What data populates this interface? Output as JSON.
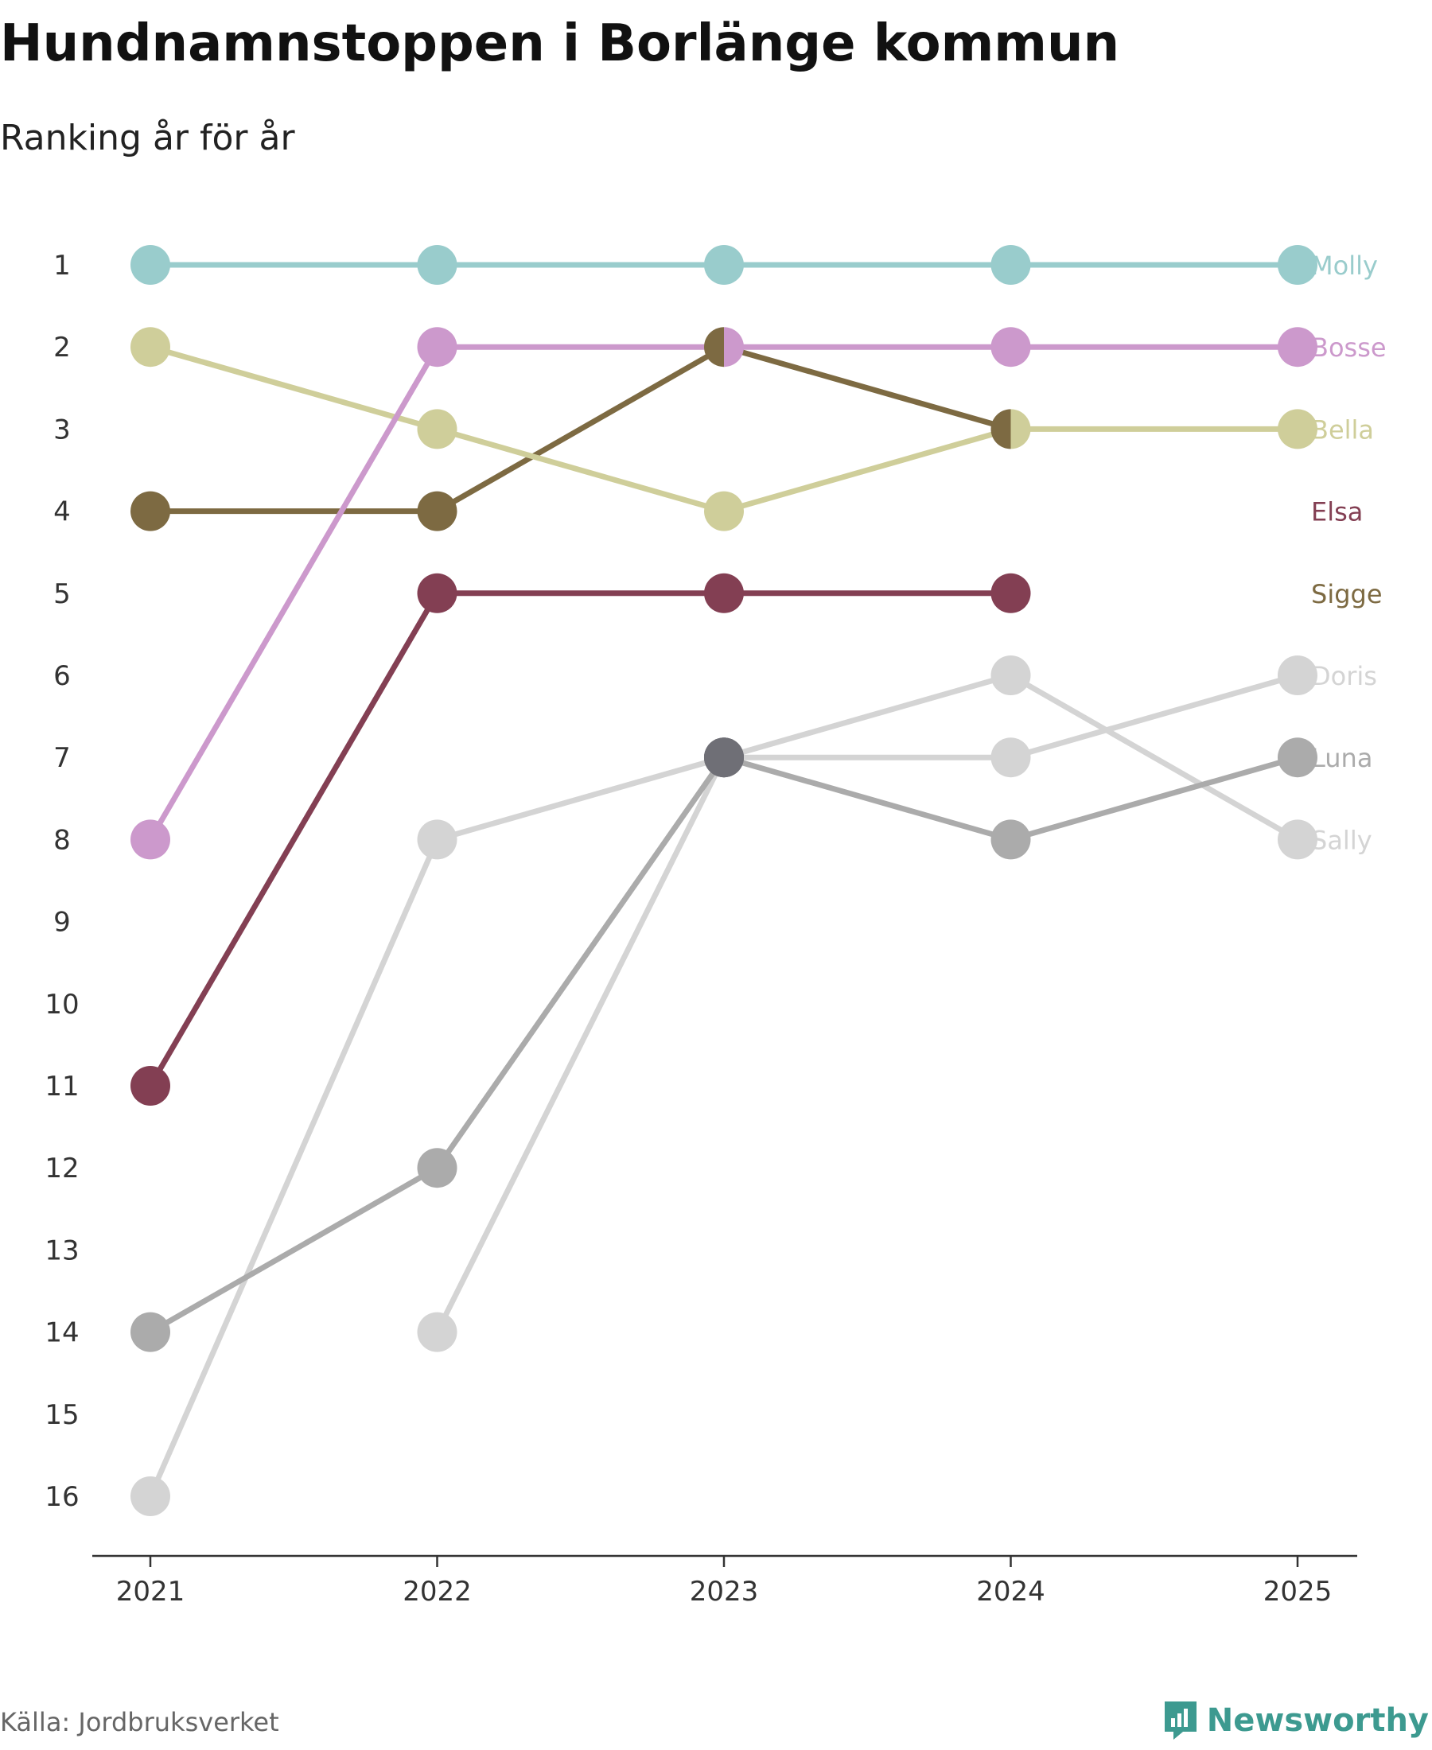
{
  "header": {
    "title": "Hundnamnstoppen i Borlänge kommun",
    "subtitle": "Ranking år för år"
  },
  "footer": {
    "source": "Källa: Jordbruksverket",
    "brand": "Newsworthy"
  },
  "chart_data": {
    "type": "line",
    "title": "Hundnamnstoppen i Borlänge kommun",
    "subtitle": "Ranking år för år",
    "xlabel": "",
    "ylabel": "",
    "categories": [
      "2021",
      "2022",
      "2023",
      "2024",
      "2025"
    ],
    "y_ticks": [
      "1",
      "2",
      "3",
      "4",
      "5",
      "6",
      "7",
      "8",
      "9",
      "10",
      "11",
      "12",
      "13",
      "14",
      "15",
      "16"
    ],
    "ylim": [
      1,
      16
    ],
    "y_inverted": true,
    "grid": false,
    "series": [
      {
        "name": "Sally",
        "color": "#d4d4d4",
        "values": [
          null,
          14,
          7,
          6,
          8
        ]
      },
      {
        "name": "Doris",
        "color": "#d4d4d4",
        "values": [
          16,
          8,
          7,
          7,
          6
        ]
      },
      {
        "name": "Luna",
        "color": "#ababab",
        "values": [
          14,
          12,
          7,
          8,
          7
        ]
      },
      {
        "name": "Sigge",
        "color": "#7d6a42",
        "values": [
          4,
          4,
          2,
          3,
          null
        ]
      },
      {
        "name": "Elsa",
        "color": "#833f53",
        "values": [
          11,
          5,
          5,
          5,
          null
        ]
      },
      {
        "name": "Bella",
        "color": "#cfce9a",
        "values": [
          2,
          3,
          4,
          3,
          3
        ]
      },
      {
        "name": "Bosse",
        "color": "#cc99cc",
        "values": [
          8,
          2,
          2,
          2,
          2
        ]
      },
      {
        "name": "Molly",
        "color": "#99cccc",
        "values": [
          1,
          1,
          1,
          1,
          1
        ]
      }
    ],
    "end_labels": [
      {
        "name": "Molly",
        "rank": 1,
        "color": "#99cccc"
      },
      {
        "name": "Bosse",
        "rank": 2,
        "color": "#cc99cc"
      },
      {
        "name": "Bella",
        "rank": 3,
        "color": "#cfce9a"
      },
      {
        "name": "Elsa",
        "rank": 4,
        "color": "#833f53"
      },
      {
        "name": "Sigge",
        "rank": 5,
        "color": "#7d6a42"
      },
      {
        "name": "Doris",
        "rank": 6,
        "color": "#d4d4d4"
      },
      {
        "name": "Luna",
        "rank": 7,
        "color": "#ababab"
      },
      {
        "name": "Sally",
        "rank": 8,
        "color": "#d4d4d4"
      }
    ],
    "shared_point_color": "#6f6f76"
  }
}
